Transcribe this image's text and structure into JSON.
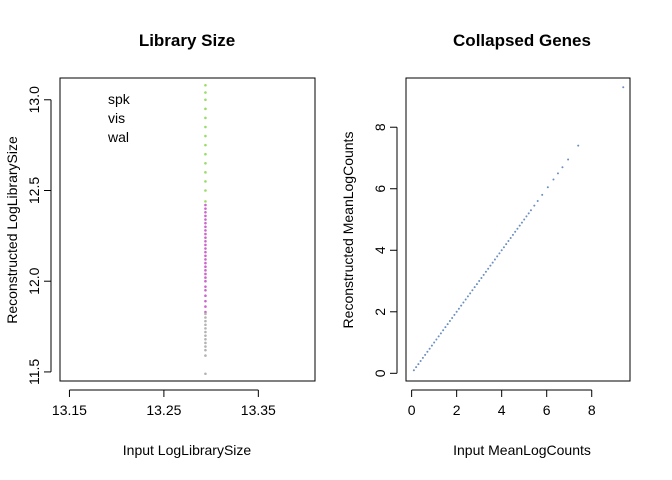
{
  "chart_data": [
    {
      "type": "scatter",
      "title": "Library Size",
      "xlabel": "Input LogLibrarySize",
      "ylabel": "Reconstructed LogLibrarySize",
      "xlim": [
        13.14,
        13.41
      ],
      "ylim": [
        11.45,
        13.12
      ],
      "xticks": [
        13.15,
        13.25,
        13.35
      ],
      "xtick_labels": [
        "13.15",
        "13.25",
        "13.35"
      ],
      "yticks": [
        11.5,
        12.0,
        12.5,
        13.0
      ],
      "ytick_labels": [
        "11.5",
        "12.0",
        "12.5",
        "13.0"
      ],
      "grid": false,
      "legend": {
        "position": "top-left",
        "frame": false
      },
      "series": [
        {
          "name": "spk",
          "color": "#cc66cc",
          "points": [
            [
              13.294,
              11.83
            ],
            [
              13.294,
              11.86
            ],
            [
              13.294,
              11.89
            ],
            [
              13.294,
              11.92
            ],
            [
              13.294,
              11.95
            ],
            [
              13.294,
              11.97
            ],
            [
              13.294,
              12.0
            ],
            [
              13.294,
              12.02
            ],
            [
              13.294,
              12.04
            ],
            [
              13.294,
              12.06
            ],
            [
              13.294,
              12.08
            ],
            [
              13.294,
              12.1
            ],
            [
              13.294,
              12.12
            ],
            [
              13.294,
              12.14
            ],
            [
              13.294,
              12.16
            ],
            [
              13.294,
              12.18
            ],
            [
              13.294,
              12.2
            ],
            [
              13.294,
              12.22
            ],
            [
              13.294,
              12.24
            ],
            [
              13.294,
              12.26
            ],
            [
              13.294,
              12.28
            ],
            [
              13.294,
              12.3
            ],
            [
              13.294,
              12.32
            ],
            [
              13.294,
              12.34
            ],
            [
              13.294,
              12.36
            ],
            [
              13.294,
              12.38
            ],
            [
              13.294,
              12.4
            ],
            [
              13.294,
              12.42
            ]
          ]
        },
        {
          "name": "vis",
          "color": "#b3b3b3",
          "points": [
            [
              13.294,
              11.49
            ],
            [
              13.294,
              11.59
            ],
            [
              13.294,
              11.62
            ],
            [
              13.294,
              11.64
            ],
            [
              13.294,
              11.66
            ],
            [
              13.294,
              11.68
            ],
            [
              13.294,
              11.7
            ],
            [
              13.294,
              11.72
            ],
            [
              13.294,
              11.74
            ],
            [
              13.294,
              11.76
            ],
            [
              13.294,
              11.78
            ],
            [
              13.294,
              11.8
            ],
            [
              13.294,
              11.82
            ]
          ]
        },
        {
          "name": "wal",
          "color": "#99dd66",
          "points": [
            [
              13.294,
              12.44
            ],
            [
              13.294,
              12.5
            ],
            [
              13.294,
              12.55
            ],
            [
              13.294,
              12.6
            ],
            [
              13.294,
              12.65
            ],
            [
              13.294,
              12.7
            ],
            [
              13.294,
              12.75
            ],
            [
              13.294,
              12.8
            ],
            [
              13.294,
              12.85
            ],
            [
              13.294,
              12.9
            ],
            [
              13.294,
              12.95
            ],
            [
              13.294,
              13.0
            ],
            [
              13.294,
              13.04
            ],
            [
              13.294,
              13.08
            ]
          ]
        }
      ]
    },
    {
      "type": "scatter",
      "title": "Collapsed Genes",
      "xlabel": "Input MeanLogCounts",
      "ylabel": "Reconstructed MeanLogCounts",
      "xlim": [
        -0.25,
        9.7
      ],
      "ylim": [
        -0.25,
        9.6
      ],
      "xticks": [
        0,
        2,
        4,
        6,
        8
      ],
      "xtick_labels": [
        "0",
        "2",
        "4",
        "6",
        "8"
      ],
      "yticks": [
        0,
        2,
        4,
        6,
        8
      ],
      "ytick_labels": [
        "0",
        "2",
        "4",
        "6",
        "8"
      ],
      "grid": false,
      "series": [
        {
          "color": "#6a8fc0",
          "points": [
            [
              0.1,
              0.1
            ],
            [
              0.2,
              0.2
            ],
            [
              0.3,
              0.3
            ],
            [
              0.4,
              0.4
            ],
            [
              0.5,
              0.5
            ],
            [
              0.6,
              0.6
            ],
            [
              0.7,
              0.7
            ],
            [
              0.8,
              0.8
            ],
            [
              0.9,
              0.9
            ],
            [
              1.0,
              1.0
            ],
            [
              1.1,
              1.1
            ],
            [
              1.2,
              1.2
            ],
            [
              1.3,
              1.3
            ],
            [
              1.4,
              1.4
            ],
            [
              1.5,
              1.5
            ],
            [
              1.6,
              1.6
            ],
            [
              1.7,
              1.7
            ],
            [
              1.8,
              1.8
            ],
            [
              1.9,
              1.9
            ],
            [
              2.0,
              2.0
            ],
            [
              2.1,
              2.1
            ],
            [
              2.2,
              2.2
            ],
            [
              2.3,
              2.3
            ],
            [
              2.4,
              2.4
            ],
            [
              2.5,
              2.5
            ],
            [
              2.6,
              2.6
            ],
            [
              2.7,
              2.7
            ],
            [
              2.8,
              2.8
            ],
            [
              2.9,
              2.9
            ],
            [
              3.0,
              3.0
            ],
            [
              3.1,
              3.1
            ],
            [
              3.2,
              3.2
            ],
            [
              3.3,
              3.3
            ],
            [
              3.4,
              3.4
            ],
            [
              3.5,
              3.5
            ],
            [
              3.6,
              3.6
            ],
            [
              3.7,
              3.7
            ],
            [
              3.8,
              3.8
            ],
            [
              3.9,
              3.9
            ],
            [
              4.0,
              4.0
            ],
            [
              4.1,
              4.1
            ],
            [
              4.2,
              4.2
            ],
            [
              4.3,
              4.3
            ],
            [
              4.4,
              4.4
            ],
            [
              4.5,
              4.5
            ],
            [
              4.6,
              4.6
            ],
            [
              4.7,
              4.7
            ],
            [
              4.8,
              4.8
            ],
            [
              4.9,
              4.9
            ],
            [
              5.0,
              5.0
            ],
            [
              5.1,
              5.1
            ],
            [
              5.2,
              5.2
            ],
            [
              5.3,
              5.3
            ],
            [
              5.45,
              5.45
            ],
            [
              5.6,
              5.6
            ],
            [
              5.8,
              5.8
            ],
            [
              6.05,
              6.05
            ],
            [
              6.3,
              6.3
            ],
            [
              6.5,
              6.5
            ],
            [
              6.7,
              6.7
            ],
            [
              6.95,
              6.95
            ],
            [
              7.4,
              7.4
            ],
            [
              9.4,
              9.3
            ]
          ]
        }
      ]
    }
  ]
}
